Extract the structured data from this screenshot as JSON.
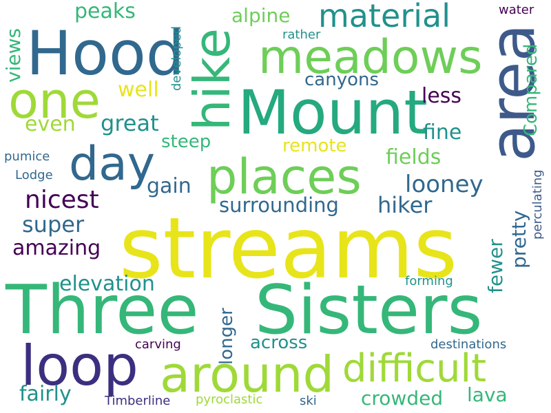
{
  "palette": {
    "purple": "#440154",
    "indigo": "#3b2f7f",
    "blue": "#31688e",
    "slate": "#3d5a8a",
    "teal": "#21918c",
    "green": "#25a97f",
    "mid_green": "#35b779",
    "light_green": "#6ece58",
    "lime": "#9fd938",
    "yellow": "#e8e41a"
  },
  "words": [
    {
      "text": "streams",
      "color": "yellow"
    },
    {
      "text": "Three",
      "color": "mid_green"
    },
    {
      "text": "Sisters",
      "color": "mid_green"
    },
    {
      "text": "Mount",
      "color": "green"
    },
    {
      "text": "Hood",
      "color": "blue"
    },
    {
      "text": "area",
      "color": "slate"
    },
    {
      "text": "hike",
      "color": "mid_green"
    },
    {
      "text": "meadows",
      "color": "light_green"
    },
    {
      "text": "places",
      "color": "light_green"
    },
    {
      "text": "around",
      "color": "lime"
    },
    {
      "text": "loop",
      "color": "indigo"
    },
    {
      "text": "day",
      "color": "blue"
    },
    {
      "text": "one",
      "color": "lime"
    },
    {
      "text": "difficult",
      "color": "lime"
    },
    {
      "text": "material",
      "color": "teal"
    },
    {
      "text": "nicest",
      "color": "purple"
    },
    {
      "text": "looney",
      "color": "blue"
    },
    {
      "text": "surrounding",
      "color": "blue"
    },
    {
      "text": "hiker",
      "color": "blue"
    },
    {
      "text": "super",
      "color": "blue"
    },
    {
      "text": "amazing",
      "color": "purple"
    },
    {
      "text": "elevation",
      "color": "teal"
    },
    {
      "text": "crowded",
      "color": "mid_green"
    },
    {
      "text": "lava",
      "color": "mid_green"
    },
    {
      "text": "fairly",
      "color": "teal"
    },
    {
      "text": "great",
      "color": "teal"
    },
    {
      "text": "gain",
      "color": "blue"
    },
    {
      "text": "even",
      "color": "lime"
    },
    {
      "text": "well",
      "color": "yellow"
    },
    {
      "text": "peaks",
      "color": "mid_green"
    },
    {
      "text": "alpine",
      "color": "light_green"
    },
    {
      "text": "canyons",
      "color": "blue"
    },
    {
      "text": "less",
      "color": "purple"
    },
    {
      "text": "fine",
      "color": "teal"
    },
    {
      "text": "fields",
      "color": "light_green"
    },
    {
      "text": "steep",
      "color": "mid_green"
    },
    {
      "text": "remote",
      "color": "yellow"
    },
    {
      "text": "across",
      "color": "teal"
    },
    {
      "text": "longer",
      "color": "blue"
    },
    {
      "text": "pretty",
      "color": "blue"
    },
    {
      "text": "fewer",
      "color": "teal"
    },
    {
      "text": "views",
      "color": "mid_green"
    },
    {
      "text": "Compared",
      "color": "mid_green"
    },
    {
      "text": "developed",
      "color": "teal"
    },
    {
      "text": "water",
      "color": "purple"
    },
    {
      "text": "rather",
      "color": "teal"
    },
    {
      "text": "pumice",
      "color": "blue"
    },
    {
      "text": "Lodge",
      "color": "blue"
    },
    {
      "text": "perculating",
      "color": "slate"
    },
    {
      "text": "forming",
      "color": "teal"
    },
    {
      "text": "carving",
      "color": "purple"
    },
    {
      "text": "destinations",
      "color": "blue"
    },
    {
      "text": "Timberline",
      "color": "indigo"
    },
    {
      "text": "pyroclastic",
      "color": "lime"
    },
    {
      "text": "ski",
      "color": "blue"
    }
  ]
}
